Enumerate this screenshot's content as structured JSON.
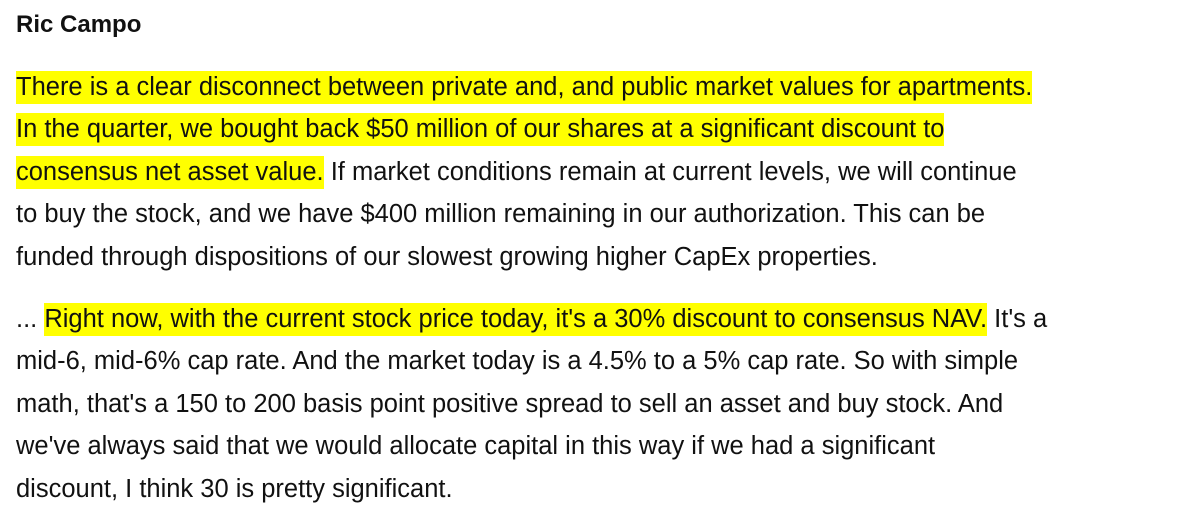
{
  "speaker": "Ric Campo",
  "highlight_color": "#ffff00",
  "paragraph1": {
    "line1": "There is a clear disconnect between private and, and public market values for apartments.",
    "line2": "In the quarter, we bought back $50 million of our shares at a significant discount to",
    "line3_highlight": "consensus net asset value.",
    "line3_rest": " If market conditions remain at current levels, we will continue",
    "line4": "to buy the stock, and we have $400 million remaining in our authorization. This can be",
    "line5": "funded through dispositions of our slowest growing higher CapEx properties."
  },
  "paragraph2": {
    "line1_prefix": "... ",
    "line1_highlight": "Right now, with the current stock price today, it's a 30% discount to consensus NAV.",
    "line1_rest": " It's a",
    "line2": "mid-6, mid-6% cap rate.  And the market today is a 4.5% to a 5% cap rate. So with simple",
    "line3": "math, that's a 150 to 200 basis point positive spread to sell an asset and buy stock. And",
    "line4": "we've always said that we would allocate capital in this way if we had a significant",
    "line5": "discount, I think 30 is pretty significant."
  }
}
